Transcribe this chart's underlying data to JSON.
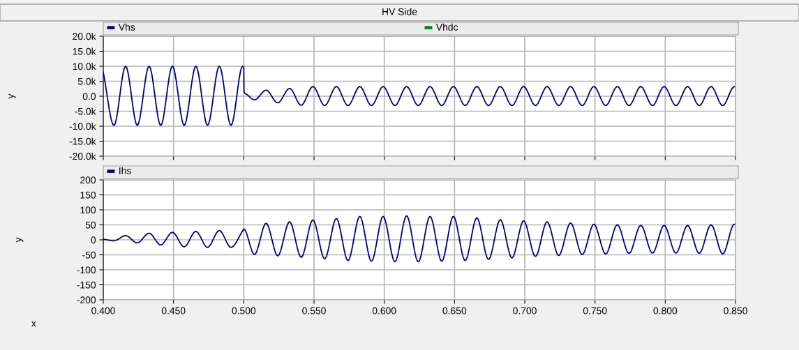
{
  "chart_data": [
    {
      "type": "line",
      "title": "HV Side",
      "ylabel": "y",
      "legend": "top",
      "grid": true,
      "tick_labels": "y",
      "xlim": [
        0.4,
        0.85
      ],
      "xticks": [
        {
          "value": 0.4,
          "label": null
        },
        {
          "value": 0.45,
          "label": null
        },
        {
          "value": 0.5,
          "label": null
        },
        {
          "value": 0.55,
          "label": null
        },
        {
          "value": 0.6,
          "label": null
        },
        {
          "value": 0.65,
          "label": null
        },
        {
          "value": 0.7,
          "label": null
        },
        {
          "value": 0.75,
          "label": null
        },
        {
          "value": 0.8,
          "label": null
        },
        {
          "value": 0.85,
          "label": null
        }
      ],
      "ylim": [
        -20000,
        20000
      ],
      "yticks": [
        {
          "value": -20000,
          "label": "-20.0k"
        },
        {
          "value": -15000,
          "label": "-15.0k"
        },
        {
          "value": -10000,
          "label": "-10.0k"
        },
        {
          "value": -5000,
          "label": "-5.0k"
        },
        {
          "value": 0,
          "label": "0.0"
        },
        {
          "value": 5000,
          "label": "5.0k"
        },
        {
          "value": 10000,
          "label": "10.0k"
        },
        {
          "value": 15000,
          "label": "15.0k"
        },
        {
          "value": 20000,
          "label": "20.0k"
        }
      ],
      "series": [
        {
          "name": "Vhs",
          "color": "#000080",
          "x": [
            0.4,
            0.4076,
            0.4159,
            0.4242,
            0.4326,
            0.4409,
            0.4492,
            0.4576,
            0.4659,
            0.4742,
            0.4826,
            0.4909,
            0.4992,
            0.5,
            0.5002,
            0.5025,
            0.5076,
            0.5159,
            0.5242,
            0.5326,
            0.5409,
            0.5492,
            0.5576,
            0.5659,
            0.5742,
            0.5826,
            0.5909,
            0.5992,
            0.6076,
            0.6159,
            0.6242,
            0.6326,
            0.6409,
            0.6492,
            0.6576,
            0.6659,
            0.6742,
            0.6826,
            0.6909,
            0.6992,
            0.7076,
            0.7159,
            0.7242,
            0.7326,
            0.7409,
            0.7492,
            0.7576,
            0.7659,
            0.7742,
            0.7826,
            0.7909,
            0.7992,
            0.8076,
            0.8159,
            0.8242,
            0.8326,
            0.8409,
            0.8492,
            0.85
          ],
          "values": [
            8000,
            -9700,
            10000,
            -9700,
            10000,
            -9700,
            10000,
            -9700,
            10000,
            -9700,
            10000,
            -9700,
            10000,
            9600,
            1500,
            500,
            -1200,
            2000,
            -2200,
            2600,
            -3000,
            3200,
            -3100,
            3200,
            -3100,
            3200,
            -3100,
            3200,
            -3100,
            3200,
            -3100,
            3200,
            -3100,
            3200,
            -3100,
            3200,
            -3100,
            3200,
            -3100,
            3200,
            -3100,
            3200,
            -3100,
            3200,
            -3100,
            3200,
            -3100,
            3200,
            -3100,
            3200,
            -3100,
            3200,
            -3100,
            3200,
            -3100,
            3200,
            -3100,
            3200,
            3100
          ]
        },
        {
          "name": "Vhdc",
          "color": "#008000"
        }
      ]
    },
    {
      "type": "line",
      "xlabel": "x",
      "ylabel": "y",
      "legend": "top",
      "grid": true,
      "xlim": [
        0.4,
        0.85
      ],
      "xticks": [
        {
          "value": 0.4,
          "label": "0.400"
        },
        {
          "value": 0.45,
          "label": "0.450"
        },
        {
          "value": 0.5,
          "label": "0.500"
        },
        {
          "value": 0.55,
          "label": "0.550"
        },
        {
          "value": 0.6,
          "label": "0.600"
        },
        {
          "value": 0.65,
          "label": "0.650"
        },
        {
          "value": 0.7,
          "label": "0.700"
        },
        {
          "value": 0.75,
          "label": "0.750"
        },
        {
          "value": 0.8,
          "label": "0.800"
        },
        {
          "value": 0.85,
          "label": "0.850"
        }
      ],
      "ylim": [
        -200,
        200
      ],
      "yticks": [
        -200,
        -150,
        -100,
        -50,
        0,
        50,
        100,
        150,
        200
      ],
      "series": [
        {
          "name": "Ihs",
          "color": "#000080",
          "x": [
            0.4,
            0.4076,
            0.4159,
            0.4242,
            0.4326,
            0.4409,
            0.4492,
            0.4576,
            0.4659,
            0.4742,
            0.4826,
            0.4909,
            0.4992,
            0.5,
            0.5076,
            0.5159,
            0.5242,
            0.5326,
            0.5409,
            0.5492,
            0.5576,
            0.5659,
            0.5742,
            0.5826,
            0.5909,
            0.5992,
            0.6076,
            0.6159,
            0.6242,
            0.6326,
            0.6409,
            0.6492,
            0.6576,
            0.6659,
            0.6742,
            0.6826,
            0.6909,
            0.6992,
            0.7076,
            0.7159,
            0.7242,
            0.7326,
            0.7409,
            0.7492,
            0.7576,
            0.7659,
            0.7742,
            0.7826,
            0.7909,
            0.7992,
            0.8076,
            0.8159,
            0.8242,
            0.8326,
            0.8409,
            0.8492,
            0.85
          ],
          "values": [
            2,
            -3,
            14,
            -10,
            22,
            -17,
            25,
            -23,
            28,
            -25,
            31,
            -25,
            30,
            36,
            -49,
            55,
            -53,
            60,
            -58,
            66,
            -63,
            71,
            -69,
            78,
            -71,
            78,
            -73,
            80,
            -73,
            78,
            -71,
            78,
            -69,
            73,
            -65,
            67,
            -60,
            63,
            -55,
            60,
            -52,
            56,
            -49,
            52,
            -47,
            50,
            -45,
            48,
            -44,
            48,
            -44,
            48,
            -45,
            50,
            -47,
            52,
            52
          ]
        }
      ]
    }
  ]
}
